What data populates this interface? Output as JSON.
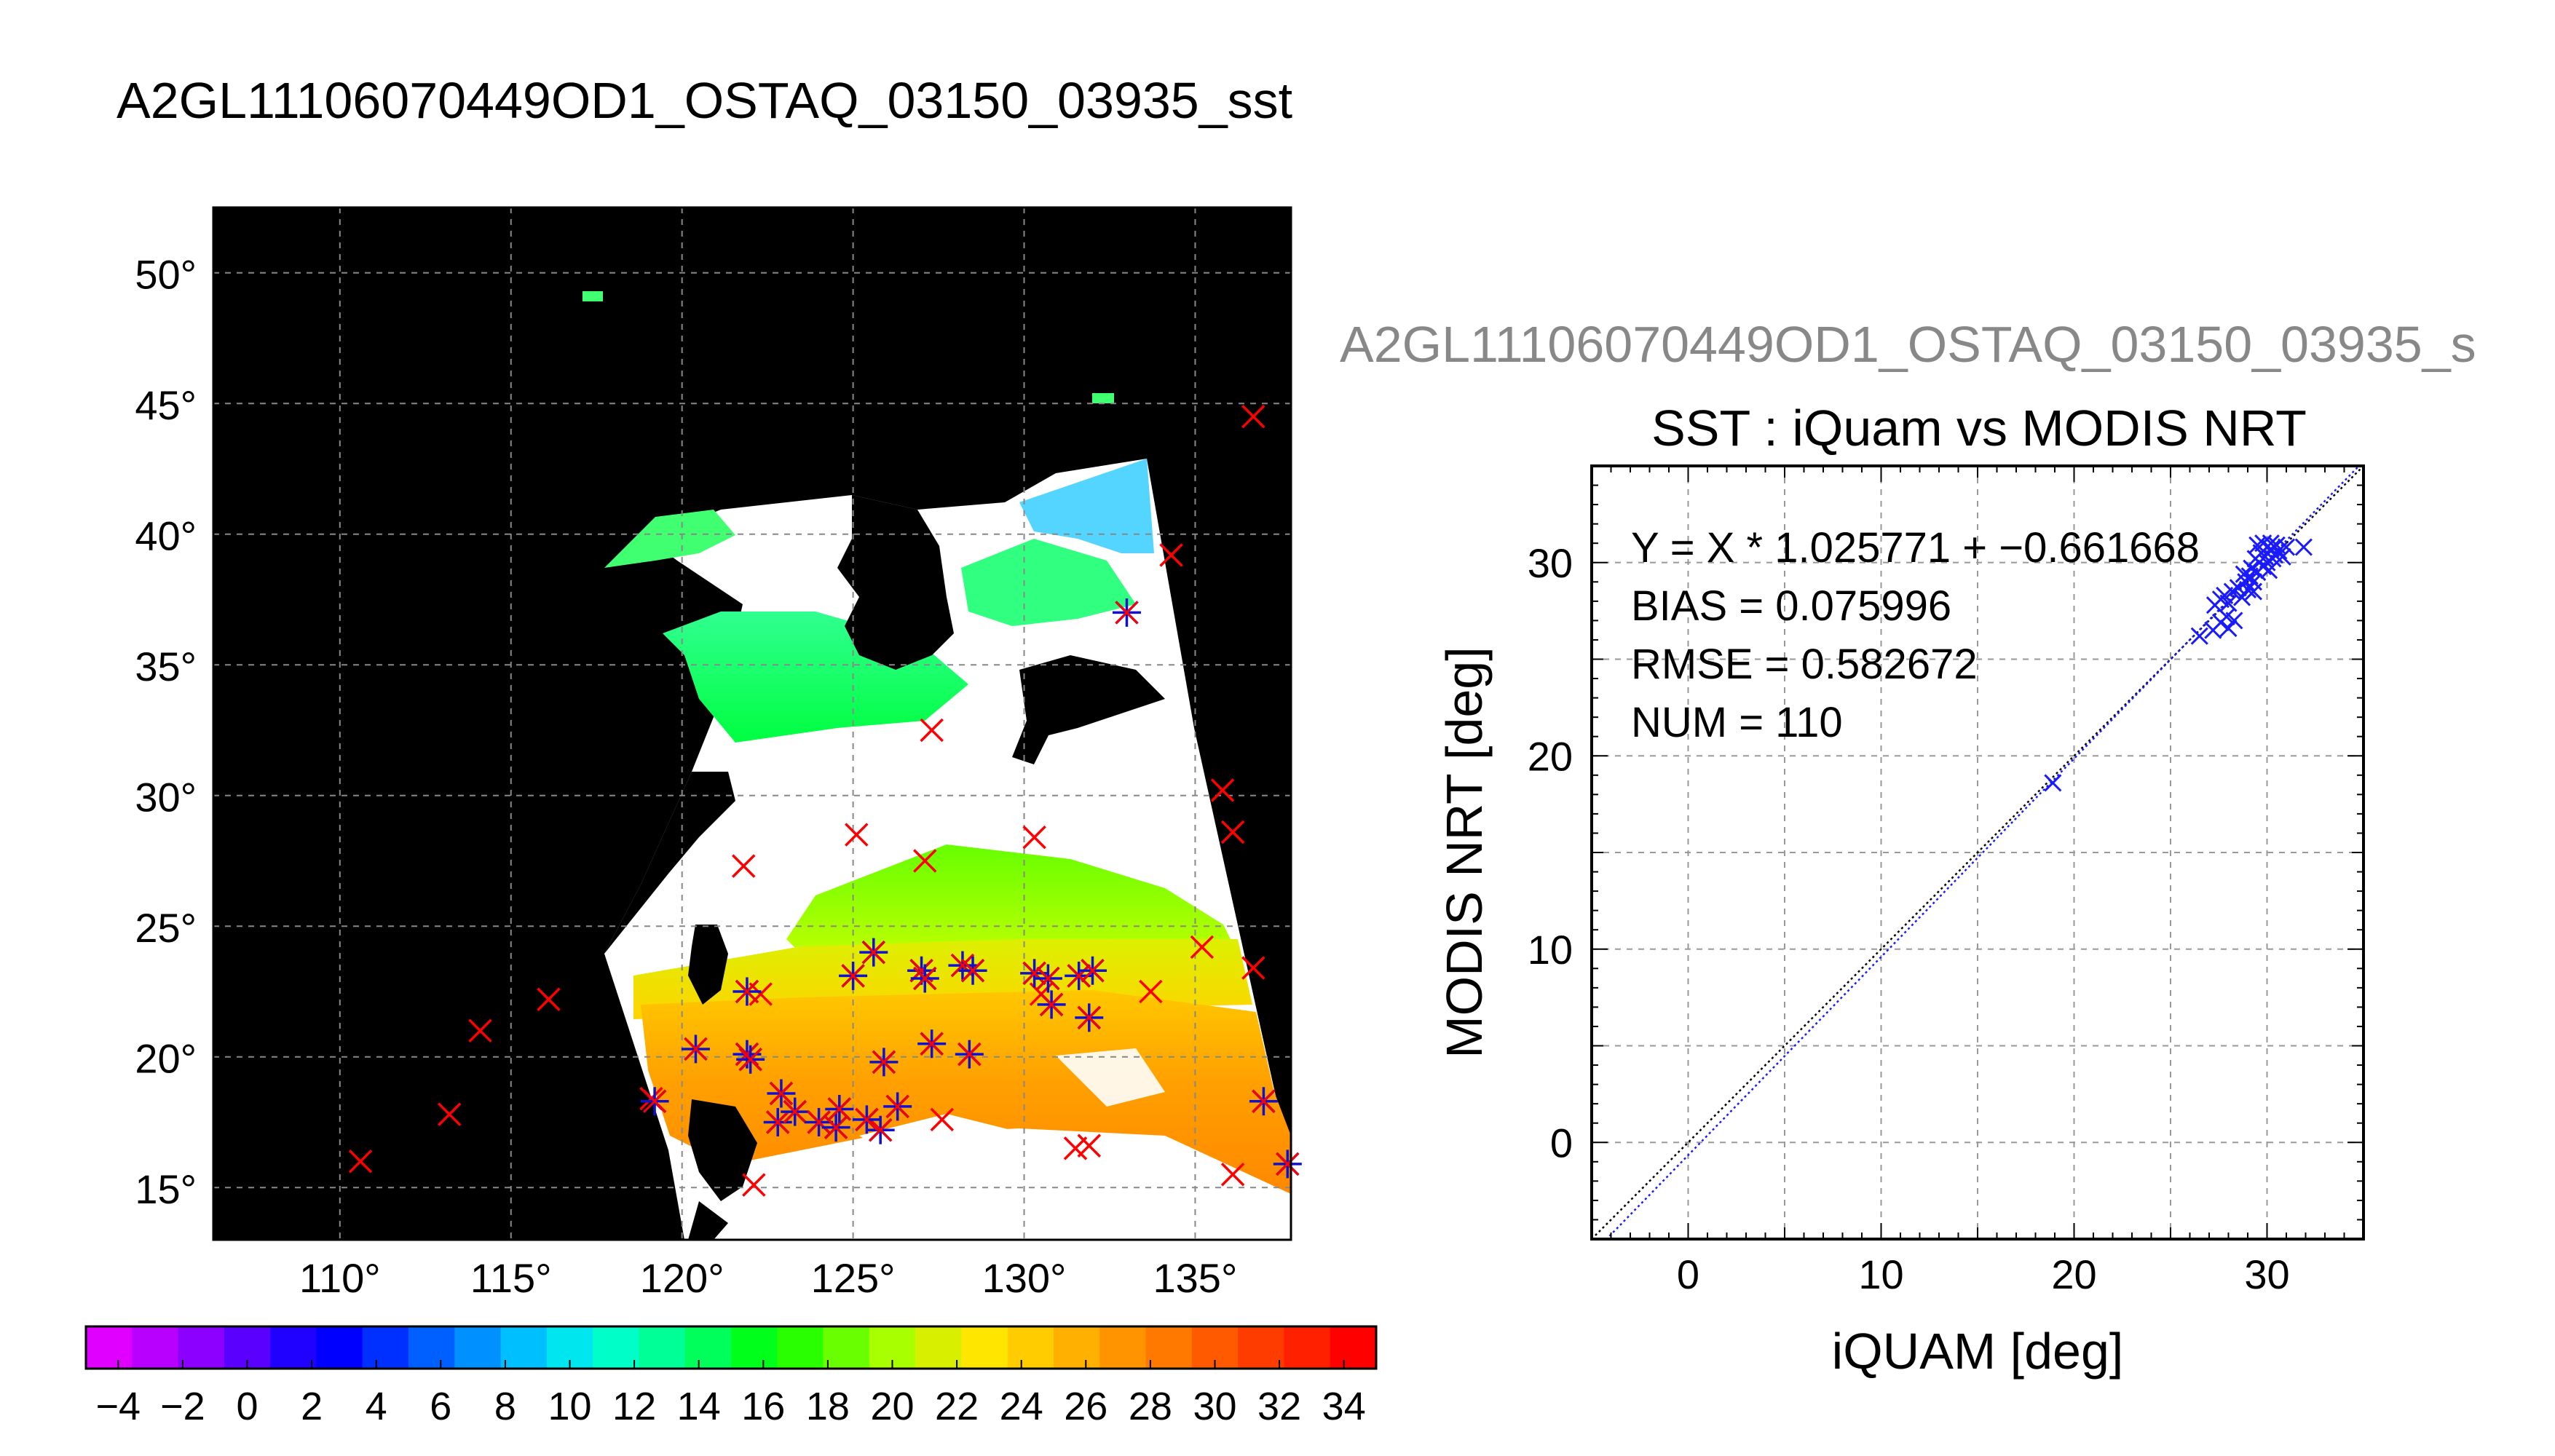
{
  "figure": {
    "main_title": "A2GL11106070449OD1_OSTAQ_03150_03935_sst",
    "right_title": "A2GL11106070449OD1_OSTAQ_03150_03935_s"
  },
  "colors": {
    "land": "#000000",
    "cloud": "#ffffff",
    "grid": "#888888",
    "iquam_marker": "#ff0000",
    "modis_marker": "#1010d0",
    "fit_line": "#1a1aff",
    "one_to_one_line": "#000000"
  },
  "map": {
    "lon_ticks": [
      110,
      115,
      120,
      125,
      130,
      135
    ],
    "lat_ticks": [
      15,
      20,
      25,
      30,
      35,
      40,
      45,
      50
    ],
    "lon_range": [
      106.3,
      137.8
    ],
    "lat_range": [
      13.0,
      52.5
    ],
    "degree_symbol": "°",
    "iquam_only_points": [
      [
        110.6,
        16.0
      ],
      [
        113.2,
        17.8
      ],
      [
        114.1,
        21.0
      ],
      [
        116.1,
        22.2
      ],
      [
        136.7,
        44.5
      ],
      [
        134.3,
        39.2
      ],
      [
        127.3,
        32.5
      ],
      [
        135.8,
        30.2
      ],
      [
        136.1,
        28.6
      ],
      [
        125.1,
        28.5
      ],
      [
        121.8,
        27.3
      ],
      [
        127.1,
        27.5
      ],
      [
        130.3,
        28.4
      ],
      [
        122.3,
        22.4
      ],
      [
        122.1,
        15.1
      ],
      [
        135.2,
        24.2
      ],
      [
        133.7,
        22.5
      ],
      [
        136.7,
        23.4
      ],
      [
        131.5,
        16.5
      ],
      [
        131.9,
        16.6
      ],
      [
        136.1,
        15.5
      ],
      [
        119.1,
        18.4
      ],
      [
        130.5,
        22.4
      ],
      [
        127.6,
        17.6
      ]
    ],
    "matched_points": [
      [
        133.0,
        37.0
      ],
      [
        119.2,
        18.3
      ],
      [
        120.4,
        20.3
      ],
      [
        121.9,
        20.1
      ],
      [
        122.0,
        19.9
      ],
      [
        121.9,
        22.5
      ],
      [
        122.9,
        18.6
      ],
      [
        122.8,
        17.5
      ],
      [
        123.3,
        17.9
      ],
      [
        124.0,
        17.5
      ],
      [
        124.5,
        17.3
      ],
      [
        125.0,
        23.1
      ],
      [
        125.6,
        24.0
      ],
      [
        125.9,
        19.8
      ],
      [
        125.8,
        17.2
      ],
      [
        126.3,
        18.1
      ],
      [
        127.0,
        23.3
      ],
      [
        127.1,
        23.0
      ],
      [
        127.3,
        20.5
      ],
      [
        128.2,
        23.5
      ],
      [
        128.5,
        23.3
      ],
      [
        128.4,
        20.1
      ],
      [
        130.3,
        23.2
      ],
      [
        130.7,
        23.0
      ],
      [
        130.8,
        22.0
      ],
      [
        131.6,
        23.1
      ],
      [
        131.9,
        21.5
      ],
      [
        132.0,
        23.3
      ],
      [
        137.0,
        18.3
      ],
      [
        137.7,
        15.9
      ],
      [
        125.4,
        17.6
      ],
      [
        124.6,
        18.0
      ]
    ]
  },
  "colorbar": {
    "tick_labels": [
      "−4",
      "−2",
      "0",
      "2",
      "4",
      "6",
      "8",
      "10",
      "12",
      "14",
      "16",
      "18",
      "20",
      "22",
      "24",
      "26",
      "28",
      "30",
      "32",
      "34"
    ],
    "range": [
      -5,
      35
    ],
    "colors": [
      "#e000ff",
      "#b800ff",
      "#8c00ff",
      "#5a00ff",
      "#2000ff",
      "#0000ff",
      "#0030ff",
      "#0060ff",
      "#0090ff",
      "#00bfff",
      "#00e6ee",
      "#00ffc8",
      "#00ff96",
      "#00ff5a",
      "#00ff1a",
      "#2aff00",
      "#6aff00",
      "#a8ff00",
      "#d8f000",
      "#ffe600",
      "#ffcc00",
      "#ffb000",
      "#ff9400",
      "#ff7800",
      "#ff5a00",
      "#ff3c00",
      "#ff2000",
      "#ff0000"
    ]
  },
  "chart_data": {
    "type": "scatter",
    "title": "SST : iQuam vs MODIS NRT",
    "xlabel": "iQUAM [deg]",
    "ylabel": "MODIS NRT [deg]",
    "xlim": [
      -5,
      35
    ],
    "ylim": [
      -5,
      35
    ],
    "xticks": [
      0,
      10,
      20,
      30
    ],
    "yticks": [
      0,
      10,
      20,
      30
    ],
    "grid": true,
    "annotations": [
      "Y = X * 1.025771 + −0.661668",
      "BIAS = 0.075996",
      "RMSE = 0.582672",
      "NUM = 110"
    ],
    "fit": {
      "slope": 1.025771,
      "intercept": -0.661668
    },
    "one_to_one": true,
    "points": [
      [
        18.9,
        18.6
      ],
      [
        26.5,
        26.2
      ],
      [
        27.2,
        26.5
      ],
      [
        27.6,
        26.9
      ],
      [
        27.9,
        27.2
      ],
      [
        28.0,
        26.6
      ],
      [
        28.3,
        27.0
      ],
      [
        27.3,
        27.8
      ],
      [
        27.6,
        28.1
      ],
      [
        27.8,
        28.3
      ],
      [
        28.0,
        27.9
      ],
      [
        28.2,
        28.5
      ],
      [
        28.5,
        28.7
      ],
      [
        28.7,
        28.2
      ],
      [
        28.9,
        29.0
      ],
      [
        29.0,
        28.6
      ],
      [
        29.1,
        29.3
      ],
      [
        29.2,
        29.7
      ],
      [
        29.3,
        29.0
      ],
      [
        29.4,
        30.2
      ],
      [
        29.5,
        29.5
      ],
      [
        29.6,
        30.0
      ],
      [
        29.7,
        30.5
      ],
      [
        29.8,
        29.8
      ],
      [
        29.9,
        30.3
      ],
      [
        30.0,
        30.0
      ],
      [
        30.1,
        29.6
      ],
      [
        30.2,
        30.7
      ],
      [
        30.3,
        30.2
      ],
      [
        30.4,
        30.4
      ],
      [
        30.6,
        30.6
      ],
      [
        30.8,
        30.3
      ],
      [
        31.0,
        30.8
      ],
      [
        29.5,
        30.9
      ],
      [
        29.8,
        31.0
      ],
      [
        30.2,
        31.0
      ],
      [
        31.9,
        30.8
      ],
      [
        29.3,
        28.5
      ],
      [
        28.8,
        29.4
      ],
      [
        30.5,
        30.9
      ]
    ]
  }
}
